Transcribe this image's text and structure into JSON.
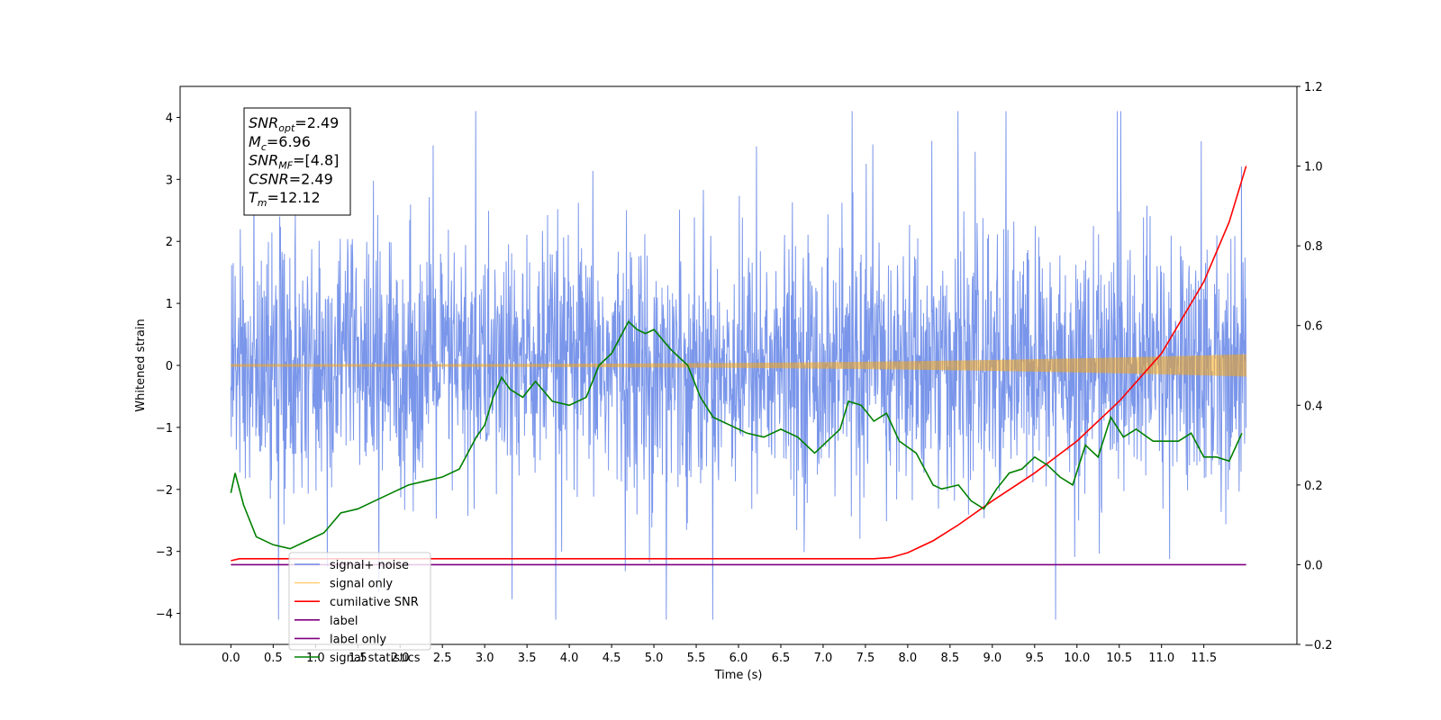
{
  "chart_data": {
    "type": "line",
    "xlabel": "Time (s)",
    "ylabel_left": "Whitened strain",
    "ylabel_right": "",
    "xlim": [
      -0.6,
      12.6
    ],
    "ylim_left": [
      -4.5,
      4.5
    ],
    "ylim_right": [
      -0.2,
      1.2
    ],
    "x_ticks": [
      0.0,
      0.5,
      1.0,
      1.5,
      2.0,
      2.5,
      3.0,
      3.5,
      4.0,
      4.5,
      5.0,
      5.5,
      6.0,
      6.5,
      7.0,
      7.5,
      8.0,
      8.5,
      9.0,
      9.5,
      10.0,
      10.5,
      11.0,
      11.5
    ],
    "x_tick_labels": [
      "0.0",
      "0.5",
      "1.0",
      "1.5",
      "2.0",
      "2.5",
      "3.0",
      "3.5",
      "4.0",
      "4.5",
      "5.0",
      "5.5",
      "6.0",
      "6.5",
      "7.0",
      "7.5",
      "8.0",
      "8.5",
      "9.0",
      "9.5",
      "10.0",
      "10.5",
      "11.0",
      "11.5"
    ],
    "y_ticks_left": [
      4,
      3,
      2,
      1,
      0,
      -1,
      -2,
      -3,
      -4
    ],
    "y_tick_labels_left": [
      "4",
      "3",
      "2",
      "1",
      "0",
      "−1",
      "−2",
      "−3",
      "−4"
    ],
    "y_ticks_right": [
      1.2,
      1.0,
      0.8,
      0.6,
      0.4,
      0.2,
      0.0,
      -0.2
    ],
    "y_tick_labels_right": [
      "1.2",
      "1.0",
      "0.8",
      "0.6",
      "0.4",
      "0.2",
      "0.0",
      "−0.2"
    ],
    "grid": false,
    "legend_placement": "lower-left",
    "annotation": {
      "lines": [
        {
          "base": "SNR",
          "sub": "opt",
          "rest": "=2.49"
        },
        {
          "base": "M",
          "sub": "c",
          "rest": "=6.96"
        },
        {
          "base": "SNR",
          "sub": "MF",
          "rest": "=[4.8]"
        },
        {
          "base": "CSNR",
          "sub": "",
          "rest": "=2.49"
        },
        {
          "base": "T",
          "sub": "m",
          "rest": "=12.12"
        }
      ]
    },
    "series": [
      {
        "name": "signal+ noise",
        "axis": "left",
        "color": "#4169e1",
        "kind": "noise",
        "x_range": [
          0.0,
          12.0
        ],
        "envelope_min": -4.1,
        "envelope_max": 4.1,
        "typical_amplitude": 1.0
      },
      {
        "name": "signal only",
        "axis": "left",
        "color": "#ffa500",
        "kind": "chirp",
        "x_range": [
          0.0,
          12.0
        ],
        "amplitude_start": 0.02,
        "amplitude_end": 0.18
      },
      {
        "name": "cumilative SNR",
        "axis": "right",
        "color": "#ff0000",
        "x": [
          0.0,
          0.1,
          7.6,
          7.8,
          8.0,
          8.3,
          8.6,
          9.0,
          9.5,
          10.0,
          10.5,
          11.0,
          11.5,
          11.8,
          12.0
        ],
        "y": [
          0.01,
          0.015,
          0.015,
          0.018,
          0.03,
          0.06,
          0.1,
          0.16,
          0.23,
          0.31,
          0.41,
          0.53,
          0.71,
          0.86,
          1.0
        ]
      },
      {
        "name": "label",
        "axis": "right",
        "color": "#800080",
        "x": [
          0.0,
          12.0
        ],
        "y": [
          0.0,
          0.0
        ]
      },
      {
        "name": "label only",
        "axis": "right",
        "color": "#800080",
        "x": [],
        "y": []
      },
      {
        "name": "signal statistics",
        "axis": "right",
        "color": "#008000",
        "x": [
          0.0,
          0.05,
          0.15,
          0.3,
          0.5,
          0.7,
          0.9,
          1.1,
          1.3,
          1.5,
          1.7,
          1.9,
          2.1,
          2.3,
          2.5,
          2.7,
          2.9,
          3.0,
          3.1,
          3.2,
          3.3,
          3.45,
          3.6,
          3.8,
          4.0,
          4.2,
          4.35,
          4.5,
          4.6,
          4.7,
          4.8,
          4.9,
          5.0,
          5.2,
          5.4,
          5.55,
          5.7,
          5.9,
          6.1,
          6.3,
          6.5,
          6.7,
          6.9,
          7.0,
          7.1,
          7.2,
          7.3,
          7.45,
          7.6,
          7.75,
          7.9,
          8.1,
          8.2,
          8.3,
          8.4,
          8.6,
          8.75,
          8.9,
          9.05,
          9.2,
          9.35,
          9.5,
          9.65,
          9.8,
          9.95,
          10.1,
          10.25,
          10.4,
          10.55,
          10.7,
          10.9,
          11.05,
          11.2,
          11.35,
          11.5,
          11.65,
          11.8,
          11.95
        ],
        "y": [
          0.18,
          0.23,
          0.15,
          0.07,
          0.05,
          0.04,
          0.06,
          0.08,
          0.13,
          0.14,
          0.16,
          0.18,
          0.2,
          0.21,
          0.22,
          0.24,
          0.32,
          0.35,
          0.42,
          0.47,
          0.44,
          0.42,
          0.46,
          0.41,
          0.4,
          0.42,
          0.5,
          0.53,
          0.57,
          0.61,
          0.59,
          0.58,
          0.59,
          0.54,
          0.5,
          0.42,
          0.37,
          0.35,
          0.33,
          0.32,
          0.34,
          0.32,
          0.28,
          0.3,
          0.32,
          0.34,
          0.41,
          0.4,
          0.36,
          0.38,
          0.31,
          0.28,
          0.24,
          0.2,
          0.19,
          0.2,
          0.16,
          0.14,
          0.19,
          0.23,
          0.24,
          0.27,
          0.25,
          0.22,
          0.2,
          0.3,
          0.27,
          0.37,
          0.32,
          0.34,
          0.31,
          0.31,
          0.31,
          0.33,
          0.27,
          0.27,
          0.26,
          0.33
        ]
      }
    ]
  }
}
